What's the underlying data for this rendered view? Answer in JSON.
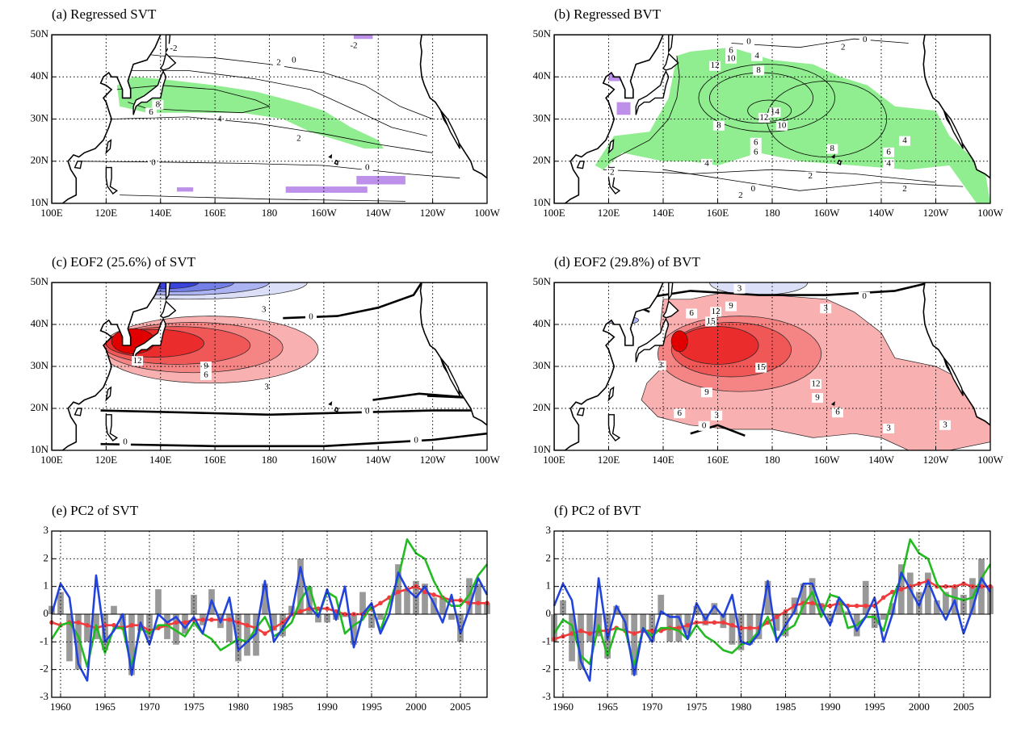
{
  "chart_data": [
    {
      "type": "map",
      "title": "(a) Regressed SVT",
      "xlim": [
        100,
        260
      ],
      "ylim": [
        10,
        50
      ],
      "xticks": [
        {
          "value": 100,
          "label": "100E"
        },
        {
          "value": 120,
          "label": "120E"
        },
        {
          "value": 140,
          "label": "140E"
        },
        {
          "value": 160,
          "label": "160E"
        },
        180,
        {
          "value": 200,
          "label": "160W"
        },
        {
          "value": 220,
          "label": "140W"
        },
        {
          "value": 240,
          "label": "120W"
        },
        {
          "value": 260,
          "label": "100W"
        }
      ],
      "yticks": [
        {
          "value": 10,
          "label": "10N"
        },
        {
          "value": 20,
          "label": "20N"
        },
        {
          "value": 30,
          "label": "30N"
        },
        {
          "value": 40,
          "label": "40N"
        },
        {
          "value": 50,
          "label": "50N"
        }
      ],
      "grid": true,
      "colors": {
        "positive": "#90ee90",
        "negative": "#bd90ea"
      },
      "contour_labels": [
        -2,
        2,
        0,
        -2,
        8,
        6,
        4,
        2,
        0,
        0
      ]
    },
    {
      "type": "map",
      "title": "(b) Regressed BVT",
      "xlim": [
        100,
        260
      ],
      "ylim": [
        10,
        50
      ],
      "xticks": [
        {
          "value": 100,
          "label": "100E"
        },
        {
          "value": 120,
          "label": "120E"
        },
        {
          "value": 140,
          "label": "140E"
        },
        {
          "value": 160,
          "label": "160E"
        },
        180,
        {
          "value": 200,
          "label": "160W"
        },
        {
          "value": 220,
          "label": "140W"
        },
        {
          "value": 240,
          "label": "120W"
        },
        {
          "value": 260,
          "label": "100W"
        }
      ],
      "yticks": [
        {
          "value": 10,
          "label": "10N"
        },
        {
          "value": 20,
          "label": "20N"
        },
        {
          "value": 30,
          "label": "30N"
        },
        {
          "value": 40,
          "label": "40N"
        },
        {
          "value": 50,
          "label": "50N"
        }
      ],
      "grid": true,
      "colors": {
        "positive": "#90ee90",
        "negative": "#bd90ea"
      },
      "contour_labels": [
        0,
        6,
        10,
        4,
        12,
        8,
        2,
        0,
        14,
        12,
        10,
        8,
        6,
        6,
        4,
        8,
        6,
        4,
        4,
        2,
        2,
        2,
        0,
        2
      ]
    },
    {
      "type": "map",
      "title": "(c) EOF2 (25.6%) of SVT",
      "xlim": [
        100,
        260
      ],
      "ylim": [
        10,
        50
      ],
      "xticks": [
        {
          "value": 100,
          "label": "100E"
        },
        {
          "value": 120,
          "label": "120E"
        },
        {
          "value": 140,
          "label": "140E"
        },
        {
          "value": 160,
          "label": "160E"
        },
        180,
        {
          "value": 200,
          "label": "160W"
        },
        {
          "value": 220,
          "label": "140W"
        },
        {
          "value": 240,
          "label": "120W"
        },
        {
          "value": 260,
          "label": "100W"
        }
      ],
      "yticks": [
        {
          "value": 10,
          "label": "10N"
        },
        {
          "value": 20,
          "label": "20N"
        },
        {
          "value": 30,
          "label": "30N"
        },
        {
          "value": 40,
          "label": "40N"
        },
        {
          "value": 50,
          "label": "50N"
        }
      ],
      "grid": true,
      "colors": {
        "positive": [
          "#f9b0b0",
          "#f58585",
          "#f05858",
          "#ea2c2c",
          "#e00000"
        ],
        "negative": [
          "#dcdff8",
          "#abb3f2",
          "#7480e8",
          "#3844dd"
        ]
      },
      "contour_labels": [
        3,
        6,
        9,
        12,
        0,
        0,
        0,
        0,
        3
      ]
    },
    {
      "type": "map",
      "title": "(d) EOF2 (29.8%) of BVT",
      "xlim": [
        100,
        260
      ],
      "ylim": [
        10,
        50
      ],
      "xticks": [
        {
          "value": 100,
          "label": "100E"
        },
        {
          "value": 120,
          "label": "120E"
        },
        {
          "value": 140,
          "label": "140E"
        },
        {
          "value": 160,
          "label": "160E"
        },
        180,
        {
          "value": 200,
          "label": "160W"
        },
        {
          "value": 220,
          "label": "140W"
        },
        {
          "value": 240,
          "label": "120W"
        },
        {
          "value": 260,
          "label": "100W"
        }
      ],
      "yticks": [
        {
          "value": 10,
          "label": "10N"
        },
        {
          "value": 20,
          "label": "20N"
        },
        {
          "value": 30,
          "label": "30N"
        },
        {
          "value": 40,
          "label": "40N"
        },
        {
          "value": 50,
          "label": "50N"
        }
      ],
      "grid": true,
      "colors": {
        "positive": [
          "#f9b0b0",
          "#f58585",
          "#f05858",
          "#ea2c2c",
          "#e00000"
        ],
        "negative": [
          "#dcdff8",
          "#abb3f2",
          "#7480e8",
          "#3844dd"
        ]
      },
      "contour_labels": [
        3,
        0,
        3,
        6,
        12,
        9,
        15,
        15,
        12,
        9,
        9,
        6,
        3,
        0,
        3,
        3,
        3,
        6
      ]
    },
    {
      "type": "combo",
      "title": "(e) PC2 of SVT",
      "xlim": [
        1959,
        2008
      ],
      "ylim": [
        -3,
        3
      ],
      "xticks": [
        1960,
        1965,
        1970,
        1975,
        1980,
        1985,
        1990,
        1995,
        2000,
        2005
      ],
      "yticks": [
        -3,
        -2,
        -1,
        0,
        1,
        2,
        3
      ],
      "grid": true,
      "x": [
        1959,
        1960,
        1961,
        1962,
        1963,
        1964,
        1965,
        1966,
        1967,
        1968,
        1969,
        1970,
        1971,
        1972,
        1973,
        1974,
        1975,
        1976,
        1977,
        1978,
        1979,
        1980,
        1981,
        1982,
        1983,
        1984,
        1985,
        1986,
        1987,
        1988,
        1989,
        1990,
        1991,
        1992,
        1993,
        1994,
        1995,
        1996,
        1997,
        1998,
        1999,
        2000,
        2001,
        2002,
        2003,
        2004,
        2005,
        2006,
        2007,
        2008
      ],
      "series": [
        {
          "style": "bar",
          "color": "#999999",
          "values": [
            0.3,
            0.8,
            -1.7,
            -2.0,
            -1.0,
            -0.9,
            -1.3,
            0.3,
            -0.5,
            -2.2,
            -0.6,
            -0.9,
            0.9,
            -0.9,
            -1.1,
            -0.7,
            0.7,
            -0.4,
            0.9,
            -0.5,
            -1.0,
            -1.7,
            -1.5,
            -1.5,
            1.1,
            -0.6,
            -0.8,
            0.3,
            2.0,
            1.0,
            -0.3,
            -0.3,
            -0.2,
            -0.1,
            -1.1,
            0.8,
            -0.5,
            -0.2,
            0.0,
            1.8,
            0.9,
            1.2,
            1.1,
            0.6,
            0.6,
            -0.2,
            -1.0,
            1.3,
            1.1,
            0.4
          ]
        },
        {
          "style": "line",
          "marker": true,
          "color": "#f03c3c",
          "values": [
            -0.3,
            -0.4,
            -0.3,
            -0.3,
            -0.4,
            -0.5,
            -0.4,
            -0.4,
            -0.5,
            -0.4,
            -0.4,
            -0.6,
            -0.5,
            -0.4,
            -0.3,
            -0.3,
            -0.2,
            -0.2,
            -0.2,
            -0.2,
            -0.2,
            -0.3,
            -0.4,
            -0.5,
            -0.7,
            -0.5,
            -0.3,
            0.0,
            0.1,
            0.2,
            0.2,
            0.2,
            0.1,
            0.0,
            0.0,
            0.0,
            0.2,
            0.4,
            0.6,
            0.8,
            0.9,
            1.0,
            0.8,
            0.7,
            0.6,
            0.5,
            0.5,
            0.4,
            0.4,
            0.4
          ]
        },
        {
          "style": "line",
          "marker": false,
          "color": "#22bb22",
          "values": [
            -0.9,
            -0.4,
            -0.3,
            -0.8,
            -1.9,
            -0.4,
            -1.4,
            -0.5,
            -0.5,
            -1.9,
            -0.5,
            -0.7,
            -0.4,
            -0.4,
            -0.6,
            -0.8,
            -0.3,
            -0.7,
            -0.9,
            -1.3,
            -1.1,
            -0.9,
            -1.0,
            -0.5,
            -0.1,
            -0.8,
            -0.6,
            -0.3,
            0.5,
            1.0,
            -0.1,
            0.8,
            0.6,
            -0.7,
            -0.4,
            -0.2,
            0.3,
            -0.6,
            0.4,
            1.3,
            2.7,
            2.2,
            2.0,
            1.2,
            0.6,
            0.3,
            0.3,
            0.7,
            1.4,
            1.8
          ]
        },
        {
          "style": "line",
          "marker": false,
          "color": "#2244dd",
          "values": [
            0,
            1.1,
            0.6,
            -1.8,
            -2.4,
            1.4,
            -1.0,
            -0.6,
            0.0,
            -2.2,
            -0.3,
            -1.1,
            0.0,
            -0.3,
            -0.1,
            -0.5,
            -0.1,
            -0.7,
            0.5,
            -0.3,
            0.6,
            -1.3,
            -1.0,
            -0.7,
            1.2,
            -1.0,
            -0.5,
            0.0,
            1.7,
            0.3,
            -0.1,
            0.9,
            -0.2,
            1.0,
            -1.2,
            0.0,
            0.4,
            -0.7,
            0.0,
            1.5,
            0.9,
            0.6,
            1.0,
            0.4,
            -0.3,
            0.7,
            -0.7,
            0.2,
            1.3,
            0.7
          ]
        }
      ]
    },
    {
      "type": "combo",
      "title": "(f) PC2 of BVT",
      "xlim": [
        1959,
        2008
      ],
      "ylim": [
        -3,
        3
      ],
      "xticks": [
        1960,
        1965,
        1970,
        1975,
        1980,
        1985,
        1990,
        1995,
        2000,
        2005
      ],
      "yticks": [
        -3,
        -2,
        -1,
        0,
        1,
        2,
        3
      ],
      "grid": true,
      "x": [
        1959,
        1960,
        1961,
        1962,
        1963,
        1964,
        1965,
        1966,
        1967,
        1968,
        1969,
        1970,
        1971,
        1972,
        1973,
        1974,
        1975,
        1976,
        1977,
        1978,
        1979,
        1980,
        1981,
        1982,
        1983,
        1984,
        1985,
        1986,
        1987,
        1988,
        1989,
        1990,
        1991,
        1992,
        1993,
        1994,
        1995,
        1996,
        1997,
        1998,
        1999,
        2000,
        2001,
        2002,
        2003,
        2004,
        2005,
        2006,
        2007,
        2008
      ],
      "series": [
        {
          "style": "bar",
          "color": "#999999",
          "values": [
            -1.0,
            0.5,
            -1.7,
            -2.0,
            -1.0,
            -0.8,
            -1.6,
            0.3,
            -0.6,
            -2.2,
            -0.6,
            -1.0,
            0.7,
            -1.0,
            -1.0,
            -0.7,
            0.3,
            -0.4,
            0.4,
            -0.5,
            -1.1,
            -1.3,
            -1.1,
            -0.9,
            1.2,
            -0.6,
            -0.8,
            0.6,
            1.1,
            1.3,
            0.4,
            -0.3,
            0.5,
            0.1,
            -0.8,
            1.2,
            -0.5,
            -0.2,
            0.4,
            1.8,
            1.5,
            0.8,
            1.5,
            0.5,
            0.8,
            1.0,
            0.7,
            1.3,
            2.0,
            1.0
          ]
        },
        {
          "style": "line",
          "marker": true,
          "color": "#f03c3c",
          "values": [
            -0.9,
            -0.8,
            -0.7,
            -0.6,
            -0.7,
            -0.6,
            -0.6,
            -0.5,
            -0.6,
            -0.7,
            -0.6,
            -0.6,
            -0.6,
            -0.5,
            -0.5,
            -0.4,
            -0.3,
            -0.3,
            -0.3,
            -0.3,
            -0.4,
            -0.5,
            -0.5,
            -0.5,
            -0.3,
            -0.1,
            0.1,
            0.3,
            0.4,
            0.4,
            0.3,
            0.3,
            0.4,
            0.3,
            0.3,
            0.3,
            0.3,
            0.6,
            0.8,
            0.9,
            1.0,
            1.1,
            1.2,
            1.0,
            1.0,
            1.0,
            1.1,
            1.0,
            1.0,
            1.0
          ]
        },
        {
          "style": "line",
          "marker": false,
          "color": "#22bb22",
          "values": [
            -0.7,
            -0.2,
            -0.4,
            -1.5,
            -1.8,
            -0.4,
            -1.5,
            -0.5,
            -0.6,
            -1.9,
            -0.5,
            -0.8,
            -0.5,
            -0.5,
            -0.6,
            -0.9,
            -0.4,
            -0.8,
            -1.0,
            -1.3,
            -1.4,
            -1.1,
            -1.0,
            -0.6,
            -0.1,
            -0.9,
            -0.6,
            -0.4,
            0.3,
            0.8,
            -0.1,
            0.7,
            0.6,
            -0.5,
            -0.4,
            -0.1,
            -0.1,
            -0.6,
            0.6,
            1.3,
            2.7,
            2.2,
            2.0,
            1.1,
            0.7,
            0.6,
            0.5,
            0.6,
            1.3,
            1.8
          ]
        },
        {
          "style": "line",
          "marker": false,
          "color": "#2244dd",
          "values": [
            0.3,
            1.1,
            0.5,
            -1.7,
            -2.4,
            1.3,
            -0.9,
            0.3,
            -0.3,
            -2.2,
            -0.5,
            -1.0,
            0.1,
            -0.1,
            -0.1,
            -0.9,
            0.4,
            -0.2,
            0.3,
            -0.1,
            0.7,
            -1.0,
            -1.1,
            -0.7,
            1.2,
            -1.0,
            -0.4,
            0.1,
            1.1,
            1.1,
            0.2,
            -0.4,
            0.6,
            0.2,
            -0.6,
            -0.1,
            0.6,
            -1.0,
            0.0,
            1.5,
            0.9,
            0.3,
            1.2,
            0.4,
            -0.2,
            0.5,
            -0.7,
            0.2,
            1.3,
            0.8
          ]
        }
      ]
    }
  ]
}
